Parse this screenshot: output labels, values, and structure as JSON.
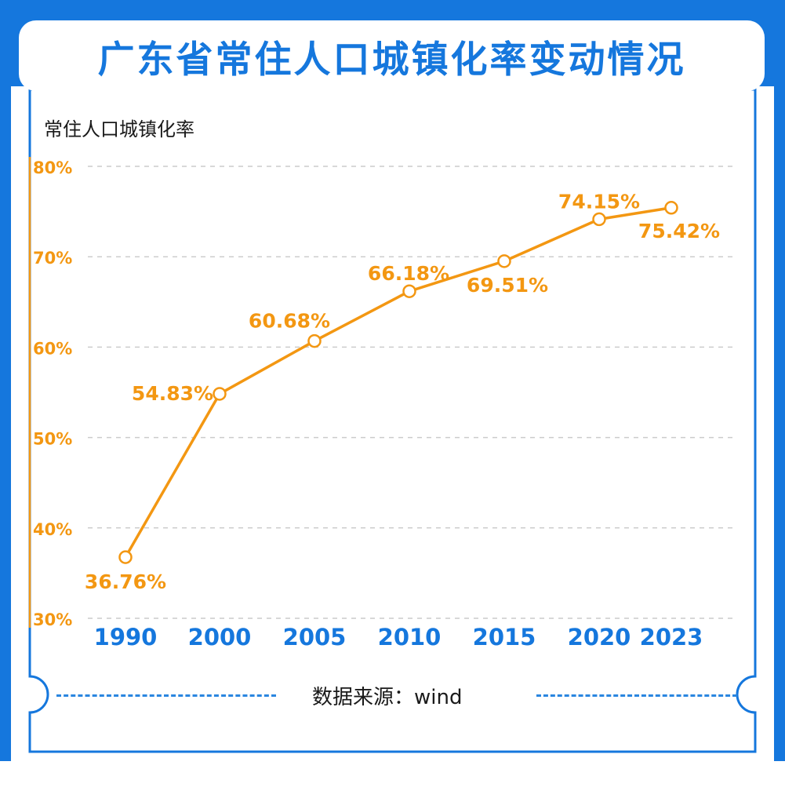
{
  "title": "广东省常住人口城镇化率变动情况",
  "source": "数据来源：wind",
  "colors": {
    "frame": "#1577dd",
    "line": "#f39712",
    "axis_label": "#f39712",
    "category_label": "#1577dd",
    "grid": "#cccccc"
  },
  "chart_data": {
    "type": "line",
    "title": "广东省常住人口城镇化率变动情况",
    "ylabel": "常住人口城镇化率",
    "xlabel": "",
    "categories": [
      "1990",
      "2000",
      "2005",
      "2010",
      "2015",
      "2020",
      "2023"
    ],
    "values": [
      36.76,
      54.83,
      60.68,
      66.18,
      69.51,
      74.15,
      75.42
    ],
    "value_labels": [
      "36.76%",
      "54.83%",
      "60.68%",
      "66.18%",
      "69.51%",
      "74.15%",
      "75.42%"
    ],
    "yticks": [
      30,
      40,
      50,
      60,
      70,
      80
    ],
    "ytick_labels": [
      "30%",
      "40%",
      "50%",
      "60%",
      "70%",
      "80%"
    ],
    "ylim": [
      30,
      80
    ],
    "grid": true,
    "legend": "none"
  }
}
